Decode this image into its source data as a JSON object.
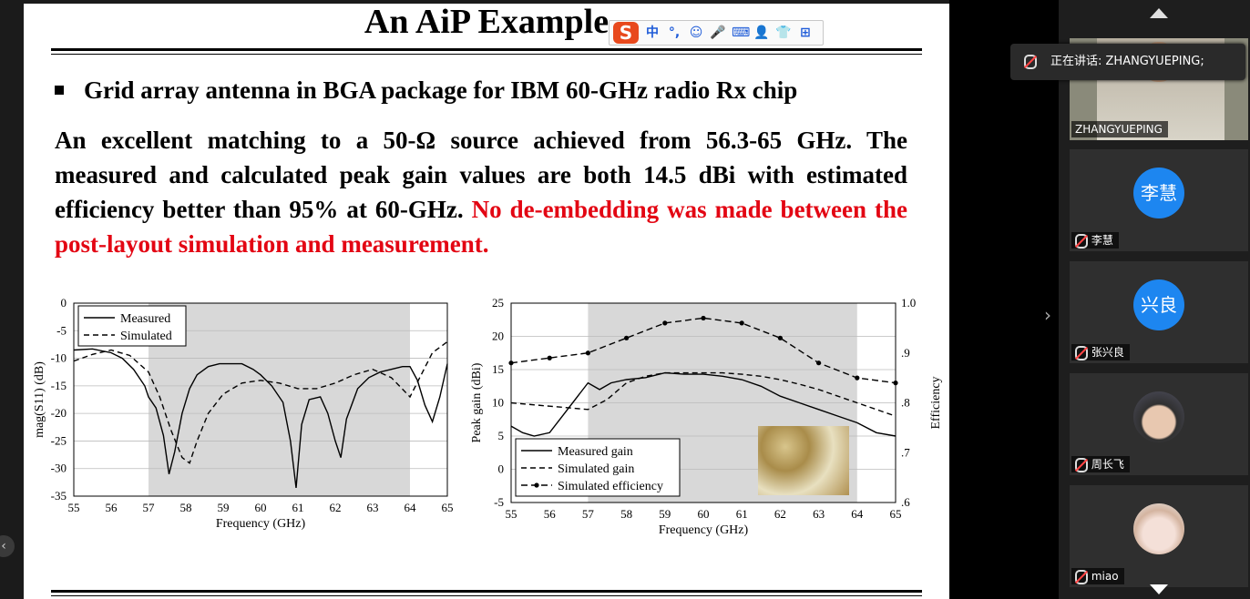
{
  "slide": {
    "title": "An AiP Example",
    "bullet": "Grid array antenna in BGA package for IBM 60-GHz radio Rx chip",
    "para_black": "An excellent matching to a 50-Ω source achieved from 56.3-65 GHz. The measured and calculated peak gain values are both 14.5 dBi with estimated efficiency better than 95% at 60-GHz.",
    "para_red": "No de-embedding was made between the post-layout simulation and measurement."
  },
  "ime_toolbar": {
    "logo": "S",
    "items": [
      "中",
      "°,",
      "☺",
      "🎤",
      "⌨",
      "👤",
      "👕",
      "⊞"
    ]
  },
  "meeting": {
    "speaking_label": "正在讲话: ZHANGYUEPING;",
    "participants": [
      {
        "name": "ZHANGYUEPING",
        "avatar": "video"
      },
      {
        "name": "李慧",
        "avatar": "李慧"
      },
      {
        "name": "张兴良",
        "avatar": "兴良"
      },
      {
        "name": "周长飞",
        "avatar": "photo"
      },
      {
        "name": "miao",
        "avatar": "photo"
      }
    ]
  },
  "chart_data": [
    {
      "type": "line",
      "ylabel": "mag(S11) (dB)",
      "xlabel": "Frequency (GHz)",
      "xlim": [
        55,
        65
      ],
      "ylim": [
        -35,
        0
      ],
      "xticks": [
        55,
        56,
        57,
        58,
        59,
        60,
        61,
        62,
        63,
        64,
        65
      ],
      "yticks": [
        0,
        -5,
        -10,
        -15,
        -20,
        -25,
        -30,
        -35
      ],
      "shaded_region": [
        57,
        64
      ],
      "legend": "top-left",
      "series": [
        {
          "name": "Measured",
          "style": "solid",
          "x": [
            55,
            55.5,
            56,
            56.3,
            56.6,
            56.9,
            57.0,
            57.2,
            57.4,
            57.55,
            57.7,
            57.9,
            58.1,
            58.3,
            58.6,
            58.9,
            59.2,
            59.5,
            59.8,
            60.0,
            60.3,
            60.6,
            60.8,
            60.95,
            61.1,
            61.3,
            61.6,
            61.8,
            62.0,
            62.15,
            62.3,
            62.6,
            62.9,
            63.2,
            63.5,
            63.8,
            64.0,
            64.2,
            64.4,
            64.6,
            64.8,
            65
          ],
          "y": [
            -8.5,
            -8.3,
            -9.0,
            -10.0,
            -12.0,
            -15.0,
            -17.0,
            -19.0,
            -24.0,
            -31.0,
            -27.0,
            -20.0,
            -15.5,
            -13.0,
            -11.5,
            -11.0,
            -11.0,
            -11.0,
            -12.0,
            -13.0,
            -15.0,
            -18.0,
            -25.0,
            -33.5,
            -22.0,
            -17.5,
            -17.0,
            -20.0,
            -25.0,
            -28.0,
            -21.0,
            -15.5,
            -13.5,
            -12.5,
            -12.0,
            -11.5,
            -11.5,
            -14.0,
            -18.5,
            -21.5,
            -17.0,
            -11.0
          ]
        },
        {
          "name": "Simulated",
          "style": "dashed",
          "x": [
            55,
            55.5,
            56,
            56.5,
            57,
            57.3,
            57.6,
            57.9,
            58.1,
            58.3,
            58.6,
            59,
            59.5,
            60,
            60.5,
            61,
            61.5,
            62,
            62.5,
            63,
            63.5,
            64,
            64.3,
            64.6,
            65
          ],
          "y": [
            -10.5,
            -9.3,
            -8.5,
            -9.5,
            -12.5,
            -17.0,
            -23.0,
            -28.0,
            -29.0,
            -25.0,
            -20.0,
            -16.5,
            -14.5,
            -14.0,
            -14.5,
            -15.5,
            -15.5,
            -14.5,
            -13.0,
            -12.0,
            -13.5,
            -17.0,
            -13.0,
            -9.0,
            -7.0
          ]
        }
      ]
    },
    {
      "type": "line",
      "ylabel": "Peak gain (dBi)",
      "y2label": "Efficiency",
      "xlabel": "Frequency (GHz)",
      "xlim": [
        55,
        65
      ],
      "ylim": [
        -5,
        25
      ],
      "y2lim": [
        0.6,
        1.0
      ],
      "xticks": [
        55,
        56,
        57,
        58,
        59,
        60,
        61,
        62,
        63,
        64,
        65
      ],
      "yticks": [
        -5,
        0,
        5,
        10,
        15,
        20,
        25
      ],
      "y2ticks": [
        ".6",
        ".7",
        ".8",
        ".9",
        "1.0"
      ],
      "shaded_region": [
        57,
        64
      ],
      "legend": "bottom-left",
      "series": [
        {
          "name": "Measured gain",
          "style": "solid",
          "x": [
            55,
            55.3,
            55.6,
            56,
            56.4,
            56.8,
            57.0,
            57.3,
            57.6,
            58,
            58.5,
            59,
            59.5,
            60,
            60.5,
            61,
            61.5,
            62,
            62.5,
            63,
            63.5,
            64,
            64.5,
            65
          ],
          "y": [
            6.5,
            5.5,
            5.0,
            5.5,
            8.5,
            11.5,
            13.0,
            12.0,
            13.0,
            13.5,
            13.8,
            14.5,
            14.3,
            14.3,
            14.0,
            13.5,
            12.5,
            11.0,
            10.0,
            9.0,
            8.0,
            7.0,
            5.5,
            5.0
          ]
        },
        {
          "name": "Simulated gain",
          "style": "dashed",
          "x": [
            55,
            56,
            57,
            57.5,
            58,
            58.5,
            59,
            59.5,
            60,
            60.5,
            61,
            61.5,
            62,
            62.5,
            63,
            63.5,
            64,
            64.5,
            65
          ],
          "y": [
            10.0,
            9.5,
            9.0,
            10.5,
            13.0,
            14.0,
            14.5,
            14.5,
            14.5,
            14.5,
            14.3,
            14.0,
            13.5,
            12.8,
            12.0,
            11.0,
            10.0,
            9.0,
            8.0
          ]
        },
        {
          "name": "Simulated efficiency",
          "style": "dash-dot-marker",
          "axis": "y2",
          "x": [
            55,
            56,
            57,
            58,
            59,
            60,
            61,
            62,
            63,
            64,
            65
          ],
          "y": [
            0.88,
            0.89,
            0.9,
            0.93,
            0.96,
            0.97,
            0.96,
            0.93,
            0.88,
            0.85,
            0.84
          ]
        }
      ]
    }
  ]
}
